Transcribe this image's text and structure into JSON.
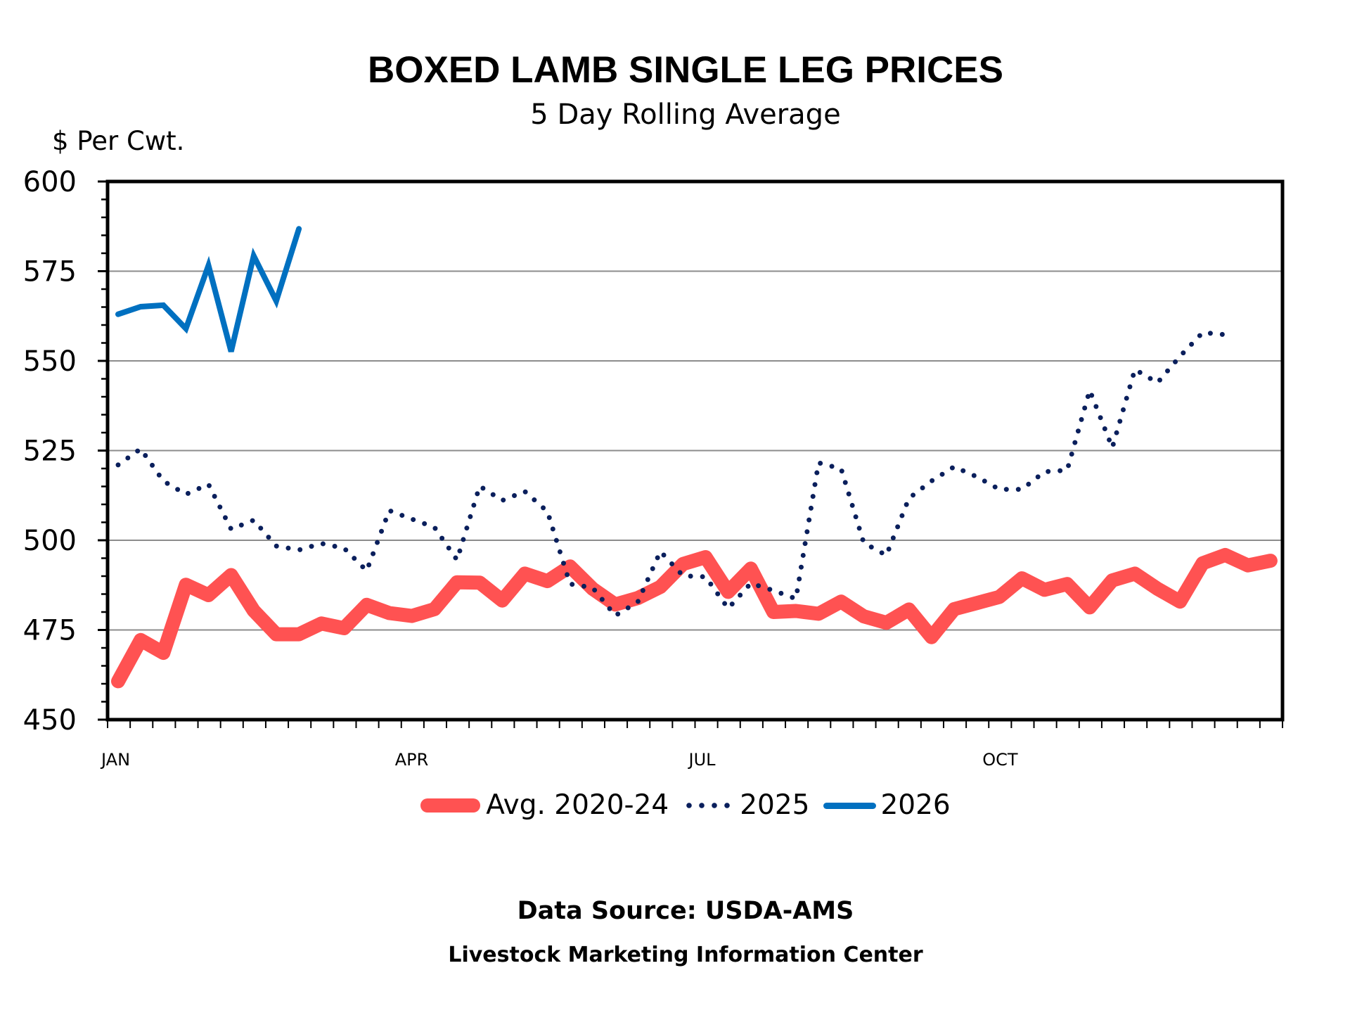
{
  "chart_data": {
    "type": "line",
    "title": "BOXED LAMB SINGLE LEG PRICES",
    "subtitle": "5 Day Rolling Average",
    "ylabel": "$ Per Cwt.",
    "xlabel": "",
    "ylim": [
      450,
      600
    ],
    "yticks": [
      450,
      475,
      500,
      525,
      550,
      575,
      600
    ],
    "y_minor_step": 5,
    "x_unit": "week of year",
    "x_count": 52,
    "xtick_labels": [
      {
        "label": "JAN",
        "week": 0
      },
      {
        "label": "APR",
        "week": 13
      },
      {
        "label": "JUL",
        "week": 26
      },
      {
        "label": "OCT",
        "week": 39
      }
    ],
    "grid": true,
    "legend_position": "bottom",
    "series": [
      {
        "name": "Avg. 2020-24",
        "color": "#ff5252",
        "style": "thick-solid",
        "values": [
          460.7,
          472.2,
          468.6,
          487.6,
          484.7,
          490.3,
          480.4,
          473.8,
          473.8,
          476.8,
          475.5,
          482.0,
          479.7,
          478.9,
          480.8,
          488.3,
          488.2,
          483.2,
          490.7,
          488.6,
          492.7,
          486.5,
          482.1,
          483.9,
          487.0,
          493.4,
          495.3,
          485.6,
          492.1,
          480.0,
          480.3,
          479.5,
          482.9,
          478.8,
          477.0,
          480.7,
          473.0,
          480.8,
          482.5,
          484.2,
          489.4,
          486.2,
          487.8,
          481.3,
          488.8,
          490.7,
          486.5,
          482.9,
          493.6,
          495.9,
          493.0,
          494.3
        ]
      },
      {
        "name": "2025",
        "color": "#0a1f5c",
        "style": "dotted",
        "values": [
          521.0,
          525.5,
          516.5,
          512.8,
          515.6,
          503.1,
          505.6,
          498.4,
          497.3,
          499.1,
          497.8,
          491.5,
          508.3,
          505.9,
          503.6,
          494.5,
          515.1,
          511.1,
          513.6,
          508.0,
          487.8,
          486.8,
          479.0,
          482.8,
          496.9,
          490.1,
          489.8,
          481.0,
          488.0,
          486.0,
          483.7,
          521.6,
          519.9,
          499.3,
          495.8,
          511.7,
          516.5,
          520.5,
          517.7,
          514.2,
          514.2,
          519.1,
          519.5,
          541.8,
          525.8,
          547.6,
          543.9,
          551.3,
          557.9,
          557.3
        ]
      },
      {
        "name": "2026",
        "color": "#0070c0",
        "style": "solid",
        "values": [
          563.0,
          565.1,
          565.5,
          559.0,
          576.6,
          552.6,
          579.3,
          566.7,
          586.8
        ]
      }
    ]
  },
  "legend": [
    {
      "label": "Avg. 2020-24"
    },
    {
      "label": "2025"
    },
    {
      "label": "2026"
    }
  ],
  "footer": {
    "source": "Data Source:  USDA-AMS",
    "org": "Livestock Marketing Information Center"
  }
}
